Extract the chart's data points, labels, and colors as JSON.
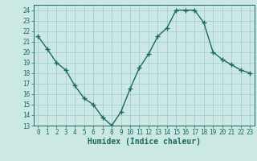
{
  "x": [
    0,
    1,
    2,
    3,
    4,
    5,
    6,
    7,
    8,
    9,
    10,
    11,
    12,
    13,
    14,
    15,
    16,
    17,
    18,
    19,
    20,
    21,
    22,
    23
  ],
  "y": [
    21.5,
    20.3,
    19.0,
    18.3,
    16.8,
    15.6,
    15.0,
    13.8,
    13.0,
    14.3,
    16.5,
    18.5,
    19.8,
    21.5,
    22.3,
    24.0,
    24.0,
    24.0,
    22.8,
    20.0,
    19.3,
    18.8,
    18.3,
    18.0
  ],
  "line_color": "#1a6b5a",
  "marker": "+",
  "markersize": 4,
  "linewidth": 1.0,
  "bg_color": "#cce8e4",
  "grid_color": "#99cccc",
  "xlabel": "Humidex (Indice chaleur)",
  "xlim": [
    -0.5,
    23.5
  ],
  "ylim": [
    13,
    24.5
  ],
  "yticks": [
    13,
    14,
    15,
    16,
    17,
    18,
    19,
    20,
    21,
    22,
    23,
    24
  ],
  "xticks": [
    0,
    1,
    2,
    3,
    4,
    5,
    6,
    7,
    8,
    9,
    10,
    11,
    12,
    13,
    14,
    15,
    16,
    17,
    18,
    19,
    20,
    21,
    22,
    23
  ],
  "tick_fontsize": 5.5,
  "xlabel_fontsize": 7.0,
  "markeredgewidth": 1.0
}
